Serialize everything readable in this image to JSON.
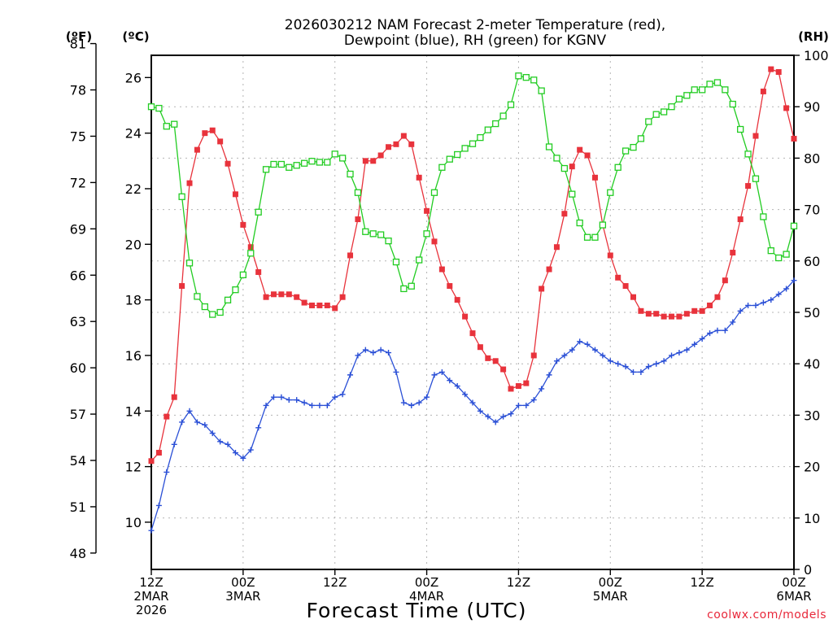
{
  "chart_data": {
    "type": "line",
    "title": [
      "2026030212 NAM Forecast 2-meter Temperature (red),",
      "Dewpoint (blue), RH (green) for KGNV"
    ],
    "xlabel": "Forecast Time (UTC)",
    "credit": "coolwx.com/models",
    "units": {
      "fahrenheit": "(ºF)",
      "celsius": "(ºC)",
      "rh": "(RH)"
    },
    "x_range_hours": [
      0,
      84
    ],
    "x_ticks": [
      {
        "hour": 0,
        "lines": [
          "12Z",
          "2MAR",
          "2026"
        ]
      },
      {
        "hour": 12,
        "lines": [
          "00Z",
          "3MAR"
        ]
      },
      {
        "hour": 24,
        "lines": [
          "12Z"
        ]
      },
      {
        "hour": 36,
        "lines": [
          "00Z",
          "4MAR"
        ]
      },
      {
        "hour": 48,
        "lines": [
          "12Z"
        ]
      },
      {
        "hour": 60,
        "lines": [
          "00Z",
          "5MAR"
        ]
      },
      {
        "hour": 72,
        "lines": [
          "12Z"
        ]
      },
      {
        "hour": 84,
        "lines": [
          "00Z",
          "6MAR"
        ]
      }
    ],
    "left_axis_c": {
      "range": [
        8.3,
        26.8
      ],
      "ticks": [
        10,
        12,
        14,
        16,
        18,
        20,
        22,
        24,
        26
      ]
    },
    "left_axis_f": {
      "ticks": [
        48,
        51,
        54,
        57,
        60,
        63,
        66,
        69,
        72,
        75,
        78,
        81
      ]
    },
    "right_axis_rh": {
      "range": [
        0,
        100
      ],
      "ticks": [
        0,
        10,
        20,
        30,
        40,
        50,
        60,
        70,
        80,
        90,
        100
      ]
    },
    "grid": true,
    "series": [
      {
        "name": "Temperature",
        "axis": "celsius",
        "color": "#e8333c",
        "marker": "filled-square",
        "points": [
          [
            0,
            12.2
          ],
          [
            1,
            12.5
          ],
          [
            2,
            13.8
          ],
          [
            3,
            14.5
          ],
          [
            4,
            18.5
          ],
          [
            5,
            22.2
          ],
          [
            6,
            23.4
          ],
          [
            7,
            24.0
          ],
          [
            8,
            24.1
          ],
          [
            9,
            23.7
          ],
          [
            10,
            22.9
          ],
          [
            11,
            21.8
          ],
          [
            12,
            20.7
          ],
          [
            13,
            19.9
          ],
          [
            14,
            19.0
          ],
          [
            15,
            18.1
          ],
          [
            16,
            18.2
          ],
          [
            17,
            18.2
          ],
          [
            18,
            18.2
          ],
          [
            19,
            18.1
          ],
          [
            20,
            17.9
          ],
          [
            21,
            17.8
          ],
          [
            22,
            17.8
          ],
          [
            23,
            17.8
          ],
          [
            24,
            17.7
          ],
          [
            25,
            18.1
          ],
          [
            26,
            19.6
          ],
          [
            27,
            20.9
          ],
          [
            28,
            23.0
          ],
          [
            29,
            23.0
          ],
          [
            30,
            23.2
          ],
          [
            31,
            23.5
          ],
          [
            32,
            23.6
          ],
          [
            33,
            23.9
          ],
          [
            34,
            23.6
          ],
          [
            35,
            22.4
          ],
          [
            36,
            21.2
          ],
          [
            37,
            20.1
          ],
          [
            38,
            19.1
          ],
          [
            39,
            18.5
          ],
          [
            40,
            18.0
          ],
          [
            41,
            17.4
          ],
          [
            42,
            16.8
          ],
          [
            43,
            16.3
          ],
          [
            44,
            15.9
          ],
          [
            45,
            15.8
          ],
          [
            46,
            15.5
          ],
          [
            47,
            14.8
          ],
          [
            48,
            14.9
          ],
          [
            49,
            15.0
          ],
          [
            50,
            16.0
          ],
          [
            51,
            18.4
          ],
          [
            52,
            19.1
          ],
          [
            53,
            19.9
          ],
          [
            54,
            21.1
          ],
          [
            55,
            22.8
          ],
          [
            56,
            23.4
          ],
          [
            57,
            23.2
          ],
          [
            58,
            22.4
          ],
          [
            59,
            20.7
          ],
          [
            60,
            19.6
          ],
          [
            61,
            18.8
          ],
          [
            62,
            18.5
          ],
          [
            63,
            18.1
          ],
          [
            64,
            17.6
          ],
          [
            65,
            17.5
          ],
          [
            66,
            17.5
          ],
          [
            67,
            17.4
          ],
          [
            68,
            17.4
          ],
          [
            69,
            17.4
          ],
          [
            70,
            17.5
          ],
          [
            71,
            17.6
          ],
          [
            72,
            17.6
          ],
          [
            73,
            17.8
          ],
          [
            74,
            18.1
          ],
          [
            75,
            18.7
          ],
          [
            76,
            19.7
          ],
          [
            77,
            20.9
          ],
          [
            78,
            22.1
          ],
          [
            79,
            23.9
          ],
          [
            80,
            25.5
          ],
          [
            81,
            26.3
          ],
          [
            82,
            26.2
          ],
          [
            83,
            24.9
          ],
          [
            84,
            23.8
          ]
        ]
      },
      {
        "name": "Dewpoint",
        "axis": "celsius",
        "color": "#2a4fd6",
        "marker": "plus",
        "points": [
          [
            0,
            9.7
          ],
          [
            1,
            10.6
          ],
          [
            2,
            11.8
          ],
          [
            3,
            12.8
          ],
          [
            4,
            13.6
          ],
          [
            5,
            14.0
          ],
          [
            6,
            13.6
          ],
          [
            7,
            13.5
          ],
          [
            8,
            13.2
          ],
          [
            9,
            12.9
          ],
          [
            10,
            12.8
          ],
          [
            11,
            12.5
          ],
          [
            12,
            12.3
          ],
          [
            13,
            12.6
          ],
          [
            14,
            13.4
          ],
          [
            15,
            14.2
          ],
          [
            16,
            14.5
          ],
          [
            17,
            14.5
          ],
          [
            18,
            14.4
          ],
          [
            19,
            14.4
          ],
          [
            20,
            14.3
          ],
          [
            21,
            14.2
          ],
          [
            22,
            14.2
          ],
          [
            23,
            14.2
          ],
          [
            24,
            14.5
          ],
          [
            25,
            14.6
          ],
          [
            26,
            15.3
          ],
          [
            27,
            16.0
          ],
          [
            28,
            16.2
          ],
          [
            29,
            16.1
          ],
          [
            30,
            16.2
          ],
          [
            31,
            16.1
          ],
          [
            32,
            15.4
          ],
          [
            33,
            14.3
          ],
          [
            34,
            14.2
          ],
          [
            35,
            14.3
          ],
          [
            36,
            14.5
          ],
          [
            37,
            15.3
          ],
          [
            38,
            15.4
          ],
          [
            39,
            15.1
          ],
          [
            40,
            14.9
          ],
          [
            41,
            14.6
          ],
          [
            42,
            14.3
          ],
          [
            43,
            14.0
          ],
          [
            44,
            13.8
          ],
          [
            45,
            13.6
          ],
          [
            46,
            13.8
          ],
          [
            47,
            13.9
          ],
          [
            48,
            14.2
          ],
          [
            49,
            14.2
          ],
          [
            50,
            14.4
          ],
          [
            51,
            14.8
          ],
          [
            52,
            15.3
          ],
          [
            53,
            15.8
          ],
          [
            54,
            16.0
          ],
          [
            55,
            16.2
          ],
          [
            56,
            16.5
          ],
          [
            57,
            16.4
          ],
          [
            58,
            16.2
          ],
          [
            59,
            16.0
          ],
          [
            60,
            15.8
          ],
          [
            61,
            15.7
          ],
          [
            62,
            15.6
          ],
          [
            63,
            15.4
          ],
          [
            64,
            15.4
          ],
          [
            65,
            15.6
          ],
          [
            66,
            15.7
          ],
          [
            67,
            15.8
          ],
          [
            68,
            16.0
          ],
          [
            69,
            16.1
          ],
          [
            70,
            16.2
          ],
          [
            71,
            16.4
          ],
          [
            72,
            16.6
          ],
          [
            73,
            16.8
          ],
          [
            74,
            16.9
          ],
          [
            75,
            16.9
          ],
          [
            76,
            17.2
          ],
          [
            77,
            17.6
          ],
          [
            78,
            17.8
          ],
          [
            79,
            17.8
          ],
          [
            80,
            17.9
          ],
          [
            81,
            18.0
          ],
          [
            82,
            18.2
          ],
          [
            83,
            18.4
          ],
          [
            84,
            18.7
          ]
        ]
      },
      {
        "name": "RH",
        "axis": "rh",
        "color": "#22cc22",
        "marker": "open-square",
        "points": [
          [
            0,
            90.0
          ],
          [
            1,
            89.7
          ],
          [
            2,
            86.2
          ],
          [
            3,
            86.6
          ],
          [
            4,
            72.5
          ],
          [
            5,
            59.6
          ],
          [
            6,
            53.1
          ],
          [
            7,
            51.1
          ],
          [
            8,
            49.6
          ],
          [
            9,
            50.0
          ],
          [
            10,
            52.4
          ],
          [
            11,
            54.4
          ],
          [
            12,
            57.3
          ],
          [
            13,
            61.5
          ],
          [
            14,
            69.5
          ],
          [
            15,
            77.8
          ],
          [
            16,
            78.8
          ],
          [
            17,
            78.8
          ],
          [
            18,
            78.2
          ],
          [
            19,
            78.6
          ],
          [
            20,
            79.0
          ],
          [
            21,
            79.4
          ],
          [
            22,
            79.2
          ],
          [
            23,
            79.2
          ],
          [
            24,
            80.8
          ],
          [
            25,
            80.0
          ],
          [
            26,
            76.9
          ],
          [
            27,
            73.3
          ],
          [
            28,
            65.7
          ],
          [
            29,
            65.3
          ],
          [
            30,
            65.1
          ],
          [
            31,
            63.9
          ],
          [
            32,
            59.8
          ],
          [
            33,
            54.6
          ],
          [
            34,
            55.1
          ],
          [
            35,
            60.2
          ],
          [
            36,
            65.3
          ],
          [
            37,
            73.3
          ],
          [
            38,
            78.2
          ],
          [
            39,
            79.8
          ],
          [
            40,
            80.7
          ],
          [
            41,
            81.9
          ],
          [
            42,
            82.8
          ],
          [
            43,
            84.0
          ],
          [
            44,
            85.5
          ],
          [
            45,
            86.7
          ],
          [
            46,
            88.2
          ],
          [
            47,
            90.4
          ],
          [
            48,
            96.0
          ],
          [
            49,
            95.7
          ],
          [
            50,
            95.2
          ],
          [
            51,
            93.1
          ],
          [
            52,
            82.2
          ],
          [
            53,
            80.0
          ],
          [
            54,
            78.0
          ],
          [
            55,
            73.0
          ],
          [
            56,
            67.4
          ],
          [
            57,
            64.6
          ],
          [
            58,
            64.6
          ],
          [
            59,
            67.0
          ],
          [
            60,
            73.3
          ],
          [
            61,
            78.2
          ],
          [
            62,
            81.4
          ],
          [
            63,
            82.1
          ],
          [
            64,
            83.8
          ],
          [
            65,
            87.1
          ],
          [
            66,
            88.5
          ],
          [
            67,
            89.0
          ],
          [
            68,
            90.0
          ],
          [
            69,
            91.5
          ],
          [
            70,
            92.2
          ],
          [
            71,
            93.3
          ],
          [
            72,
            93.3
          ],
          [
            73,
            94.4
          ],
          [
            74,
            94.7
          ],
          [
            75,
            93.3
          ],
          [
            76,
            90.5
          ],
          [
            77,
            85.6
          ],
          [
            78,
            80.8
          ],
          [
            79,
            76.0
          ],
          [
            80,
            68.6
          ],
          [
            81,
            62.0
          ],
          [
            82,
            60.6
          ],
          [
            83,
            61.3
          ],
          [
            84,
            66.8
          ]
        ]
      }
    ]
  }
}
